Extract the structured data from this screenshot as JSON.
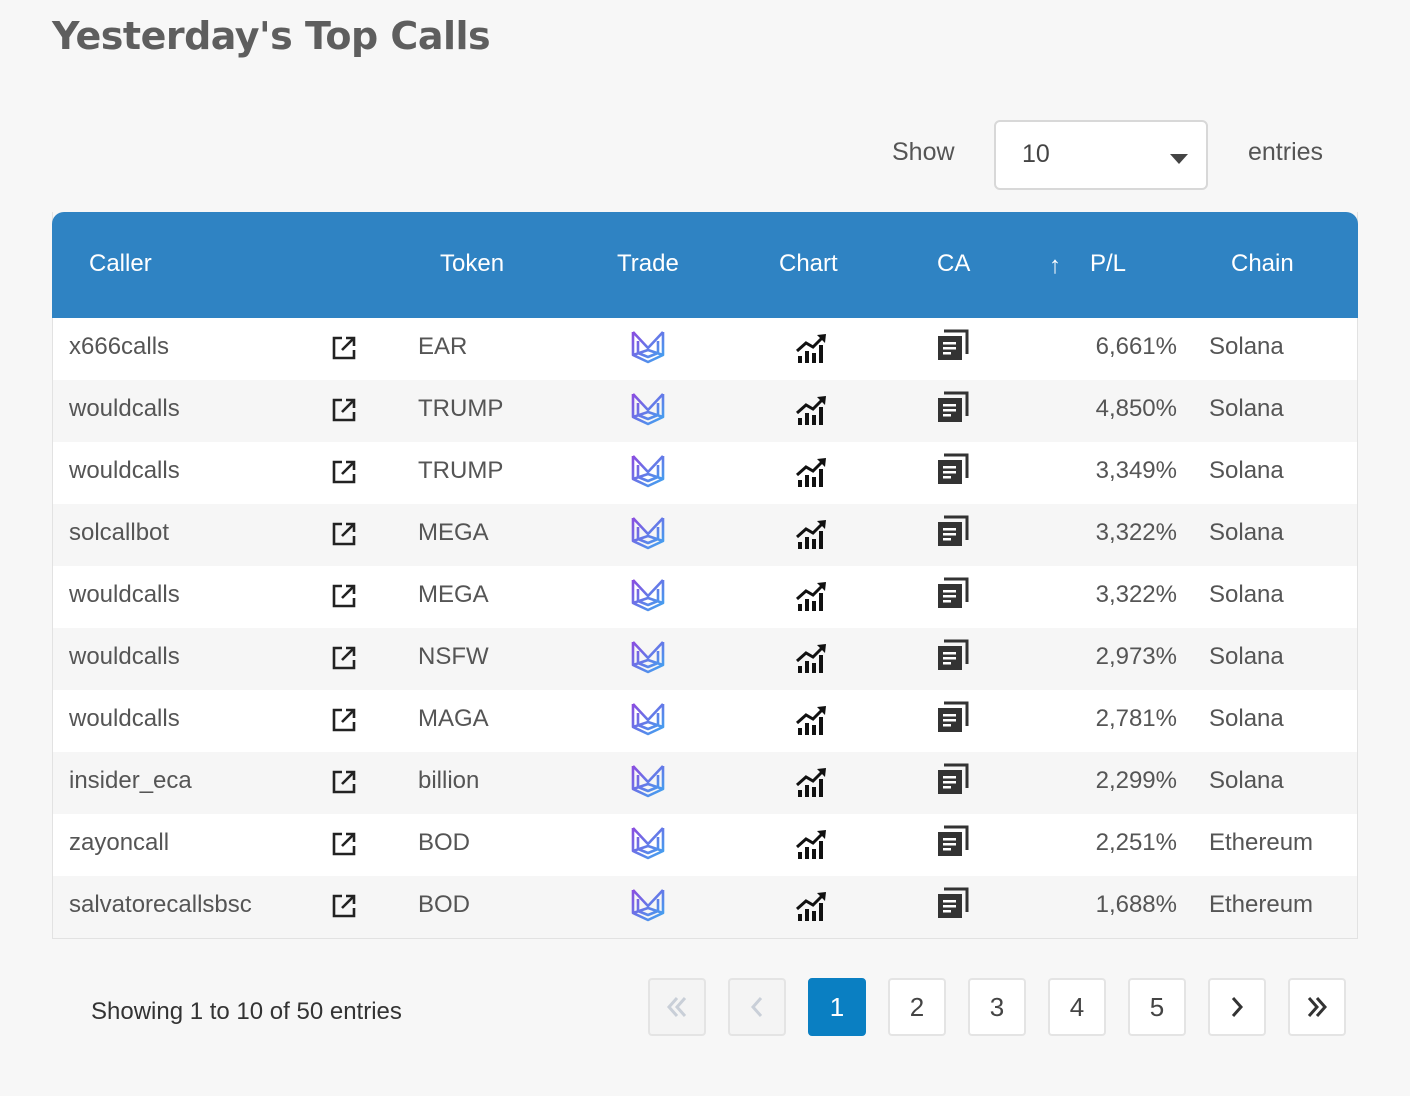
{
  "page": {
    "title": "Yesterday's Top Calls"
  },
  "length_control": {
    "show_label": "Show",
    "selected": "10",
    "entries_label": "entries"
  },
  "table": {
    "headers": {
      "caller": "Caller",
      "token": "Token",
      "trade": "Trade",
      "chart": "Chart",
      "ca": "CA",
      "sort_icon": "↑",
      "pl": "P/L",
      "chain": "Chain"
    },
    "rows": [
      {
        "caller": "x666calls",
        "token": "EAR",
        "pl": "6,661%",
        "chain": "Solana"
      },
      {
        "caller": "wouldcalls",
        "token": "TRUMP",
        "pl": "4,850%",
        "chain": "Solana"
      },
      {
        "caller": "wouldcalls",
        "token": "TRUMP",
        "pl": "3,349%",
        "chain": "Solana"
      },
      {
        "caller": "solcallbot",
        "token": "MEGA",
        "pl": "3,322%",
        "chain": "Solana"
      },
      {
        "caller": "wouldcalls",
        "token": "MEGA",
        "pl": "3,322%",
        "chain": "Solana"
      },
      {
        "caller": "wouldcalls",
        "token": "NSFW",
        "pl": "2,973%",
        "chain": "Solana"
      },
      {
        "caller": "wouldcalls",
        "token": "MAGA",
        "pl": "2,781%",
        "chain": "Solana"
      },
      {
        "caller": "insider_eca",
        "token": "billion",
        "pl": "2,299%",
        "chain": "Solana"
      },
      {
        "caller": "zayoncall",
        "token": "BOD",
        "pl": "2,251%",
        "chain": "Ethereum"
      },
      {
        "caller": "salvatorecallsbsc",
        "token": "BOD",
        "pl": "1,688%",
        "chain": "Ethereum"
      }
    ],
    "row_icons": {
      "link": "external-link-icon",
      "trade": "trade-logo-icon",
      "chart": "chart-trend-icon",
      "ca": "copy-icon"
    }
  },
  "info": "Showing 1 to 10 of 50 entries",
  "pagination": {
    "first": "«",
    "prev": "‹",
    "pages": [
      "1",
      "2",
      "3",
      "4",
      "5"
    ],
    "current": "1",
    "next": "›",
    "last": "»"
  },
  "colors": {
    "header_bg": "#2f83c3",
    "active_page": "#0a7fc2",
    "trade_gradient_start": "#8a4de0",
    "trade_gradient_end": "#3fa6f0"
  }
}
